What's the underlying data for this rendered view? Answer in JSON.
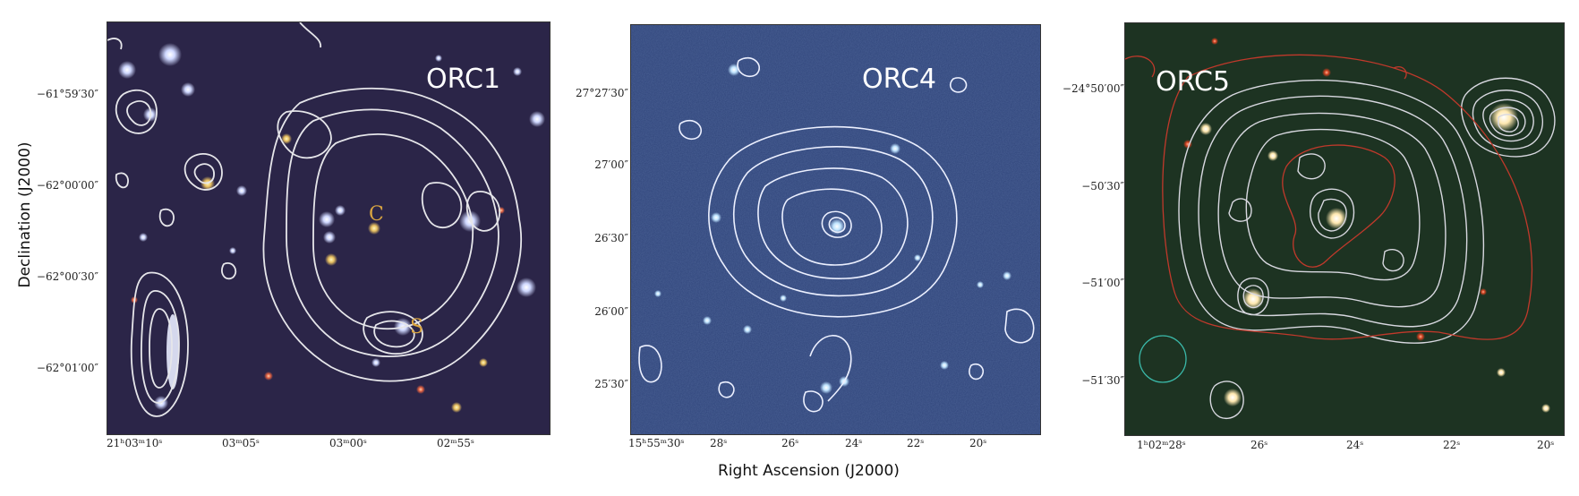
{
  "axes": {
    "y_title": "Declination (J2000)",
    "x_title": "Right Ascension (J2000)"
  },
  "panels": [
    {
      "label": "ORC1",
      "background": "#2b2548",
      "y_ticks": [
        "−61°59′30″",
        "−62°00′00″",
        "−62°00′30″",
        "−62°01′00″"
      ],
      "x_ticks": [
        "21ʰ03ᵐ10ˢ",
        "03ᵐ05ˢ",
        "03ᵐ00ˢ",
        "02ᵐ55ˢ"
      ],
      "markers": [
        {
          "text": "C",
          "color": "#d9a441"
        },
        {
          "text": "S",
          "color": "#d9a441"
        }
      ]
    },
    {
      "label": "ORC4",
      "background": "#2f447a",
      "y_ticks": [
        "27°27′30″",
        "27′00″",
        "26′30″",
        "26′00″",
        "25′30″"
      ],
      "x_ticks": [
        "15ʰ55ᵐ30ˢ",
        "28ˢ",
        "26ˢ",
        "24ˢ",
        "22ˢ",
        "20ˢ"
      ]
    },
    {
      "label": "ORC5",
      "background": "#1d3322",
      "y_ticks": [
        "−24°50′00″",
        "−50′30″",
        "−51′00″",
        "−51′30″"
      ],
      "x_ticks": [
        "1ʰ02ᵐ28ˢ",
        "26ˢ",
        "24ˢ",
        "22ˢ",
        "20ˢ"
      ]
    }
  ]
}
